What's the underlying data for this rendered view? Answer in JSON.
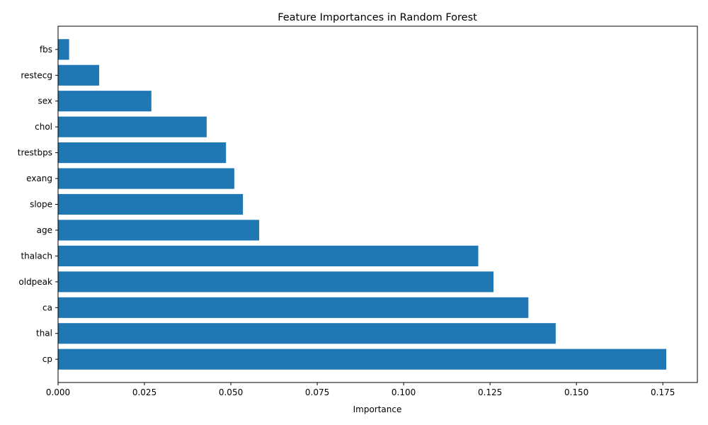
{
  "chart_data": {
    "type": "bar",
    "orientation": "horizontal",
    "title": "Feature Importances in Random Forest",
    "xlabel": "Importance",
    "ylabel": "",
    "categories": [
      "cp",
      "thal",
      "ca",
      "oldpeak",
      "thalach",
      "age",
      "slope",
      "exang",
      "trestbps",
      "chol",
      "sex",
      "restecg",
      "fbs"
    ],
    "values": [
      0.176,
      0.144,
      0.1361,
      0.126,
      0.1216,
      0.0582,
      0.0535,
      0.051,
      0.0486,
      0.043,
      0.027,
      0.0119,
      0.0032
    ],
    "xlim": [
      0,
      0.185
    ],
    "xticks": [
      0,
      0.025,
      0.05,
      0.075,
      0.1,
      0.125,
      0.15,
      0.175
    ],
    "xtick_labels": [
      "0.000",
      "0.025",
      "0.050",
      "0.075",
      "0.100",
      "0.125",
      "0.150",
      "0.175"
    ],
    "grid": false,
    "bar_color": "#1f77b4"
  }
}
